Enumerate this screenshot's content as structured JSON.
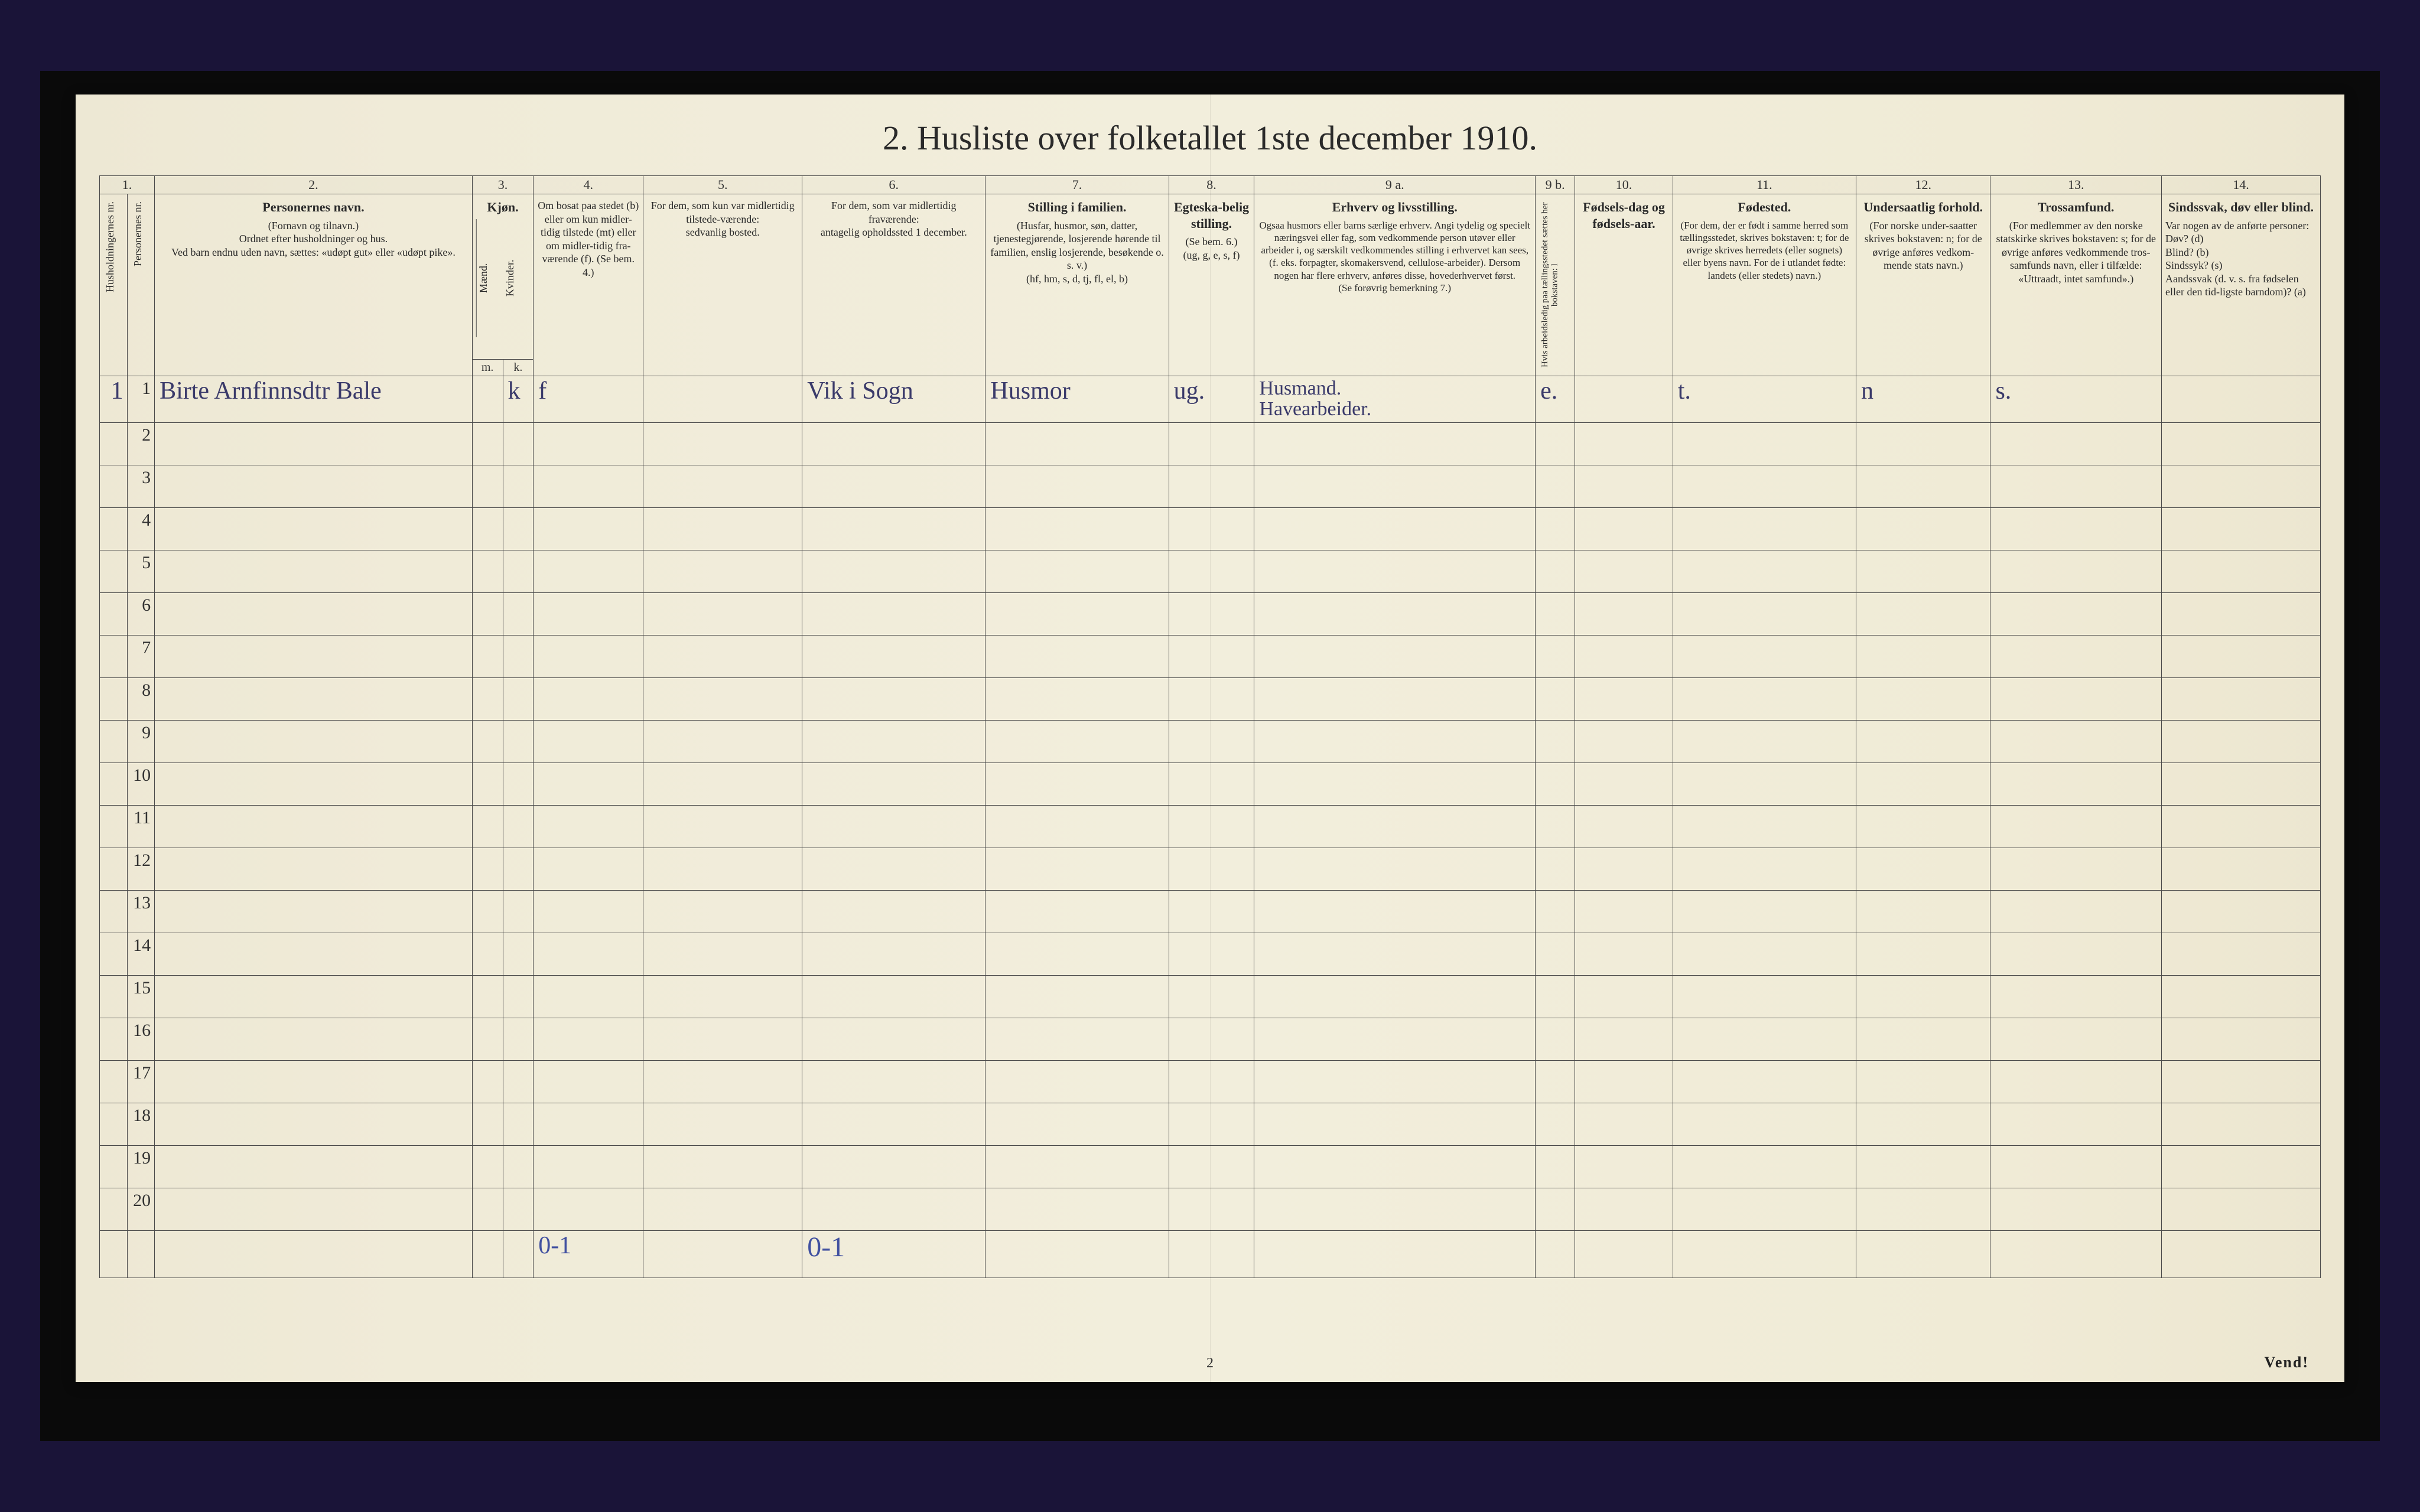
{
  "title": "2.  Husliste over folketallet 1ste december 1910.",
  "colnums": [
    "1.",
    "2.",
    "3.",
    "4.",
    "5.",
    "6.",
    "7.",
    "8.",
    "9 a.",
    "9 b.",
    "10.",
    "11.",
    "12.",
    "13.",
    "14."
  ],
  "headers": {
    "c1a": "Husholdningernes nr.",
    "c1b": "Personernes nr.",
    "c2_title": "Personernes navn.",
    "c2_sub": "(Fornavn og tilnavn.)\nOrdnet efter husholdninger og hus.\nVed barn endnu uden navn, sættes: «udøpt gut» eller «udøpt pike».",
    "c3_title": "Kjøn.",
    "c3_sub_a": "Mænd.",
    "c3_sub_b": "Kvinder.",
    "c3_mk_m": "m.",
    "c3_mk_k": "k.",
    "c4": "Om bosat paa stedet (b) eller om kun midler-tidig tilstede (mt) eller om midler-tidig fra-værende (f). (Se bem. 4.)",
    "c5": "For dem, som kun var midlertidig tilstede-værende:\nsedvanlig bosted.",
    "c6": "For dem, som var midlertidig fraværende:\nantagelig opholdssted 1 december.",
    "c7_title": "Stilling i familien.",
    "c7_sub": "(Husfar, husmor, søn, datter, tjenestegjørende, losjerende hørende til familien, enslig losjerende, besøkende o. s. v.)\n(hf, hm, s, d, tj, fl, el, b)",
    "c8_title": "Egteska-belig stilling.",
    "c8_sub": "(Se bem. 6.)\n(ug, g, e, s, f)",
    "c9_title": "Erhverv og livsstilling.",
    "c9_sub": "Ogsaa husmors eller barns særlige erhverv. Angi tydelig og specielt næringsvei eller fag, som vedkommende person utøver eller arbeider i, og særskilt vedkommendes stilling i erhvervet kan sees, (f. eks. forpagter, skomakersvend, cellulose-arbeider). Dersom nogen har flere erhverv, anføres disse, hovederhvervet først.\n(Se forøvrig bemerkning 7.)",
    "c9b": "Hvis arbeidsledig paa tællingsstedet sættes her bokstaven: l",
    "c10_title": "Fødsels-dag og fødsels-aar.",
    "c11_title": "Fødested.",
    "c11_sub": "(For dem, der er født i samme herred som tællingsstedet, skrives bokstaven: t; for de øvrige skrives herredets (eller sognets) eller byens navn. For de i utlandet fødte: landets (eller stedets) navn.)",
    "c12_title": "Undersaatlig forhold.",
    "c12_sub": "(For norske under-saatter skrives bokstaven: n; for de øvrige anføres vedkom-mende stats navn.)",
    "c13_title": "Trossamfund.",
    "c13_sub": "(For medlemmer av den norske statskirke skrives bokstaven: s; for de øvrige anføres vedkommende tros-samfunds navn, eller i tilfælde: «Uttraadt, intet samfund».)",
    "c14_title": "Sindssvak, døv eller blind.",
    "c14_sub": "Var nogen av de anførte personer:\nDøv? (d)\nBlind? (b)\nSindssyk? (s)\nAandssvak (d. v. s. fra fødselen eller den tid-ligste barndom)? (a)"
  },
  "row_numbers": [
    "1",
    "2",
    "3",
    "4",
    "5",
    "6",
    "7",
    "8",
    "9",
    "10",
    "11",
    "12",
    "13",
    "14",
    "15",
    "16",
    "17",
    "18",
    "19",
    "20"
  ],
  "data_row1": {
    "hh": "1",
    "name": "Birte Arnfinnsdtr Bale",
    "sex_k": "k",
    "bosat": "f",
    "col6": "Vik i Sogn",
    "col7": "Husmor",
    "col8": "ug.",
    "col9": "Husmand.\nHavearbeider.",
    "col9b": "e.",
    "col11": "t.",
    "col12": "n",
    "col13": "s."
  },
  "footer": {
    "col4": "0-1",
    "col6": "0-1"
  },
  "page_num": "2",
  "vend": "Vend!",
  "colors": {
    "ink": "#2a2a2a",
    "handwriting": "#3a3a6a",
    "hand_blue": "#4050a0",
    "paper_bg": "#f0ebd8",
    "border": "#4a4a4a",
    "outer_bg": "#1a1438"
  },
  "typography": {
    "title_fontsize": 58,
    "header_fontsize": 20,
    "header_title_fontsize": 22,
    "colnum_fontsize": 22,
    "rownum_fontsize": 22,
    "hand_fontsize": 42,
    "footer_fontsize": 24
  }
}
